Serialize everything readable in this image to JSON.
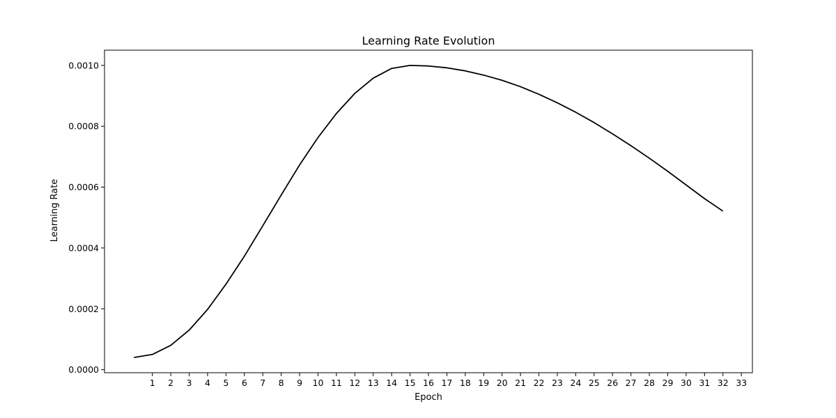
{
  "chart_data": {
    "type": "line",
    "title": "Learning Rate Evolution",
    "xlabel": "Epoch",
    "ylabel": "Learning Rate",
    "xlim": [
      -1.6,
      33.6
    ],
    "ylim": [
      -1e-05,
      0.00105
    ],
    "x_ticks": [
      1,
      2,
      3,
      4,
      5,
      6,
      7,
      8,
      9,
      10,
      11,
      12,
      13,
      14,
      15,
      16,
      17,
      18,
      19,
      20,
      21,
      22,
      23,
      24,
      25,
      26,
      27,
      28,
      29,
      30,
      31,
      32,
      33
    ],
    "y_ticks": [
      "0.0000",
      "0.0002",
      "0.0004",
      "0.0006",
      "0.0008",
      "0.0010"
    ],
    "y_tick_values": [
      0,
      0.0002,
      0.0004,
      0.0006,
      0.0008,
      0.001
    ],
    "grid": false,
    "line_color": "#000000",
    "series": [
      {
        "x": [
          0,
          1,
          2,
          3,
          4,
          5,
          6,
          7,
          8,
          9,
          10,
          11,
          12,
          13,
          14,
          15,
          16,
          17,
          18,
          19,
          20,
          21,
          22,
          23,
          24,
          25,
          26,
          27,
          28,
          29,
          30,
          31,
          32
        ],
        "values": [
          4e-05,
          5e-05,
          8e-05,
          0.00013,
          0.000198,
          0.000281,
          0.000373,
          0.000473,
          0.000574,
          0.000673,
          0.000763,
          0.000842,
          0.000908,
          0.000958,
          0.00099,
          0.001,
          0.000998,
          0.000992,
          0.000982,
          0.000968,
          0.000951,
          0.00093,
          0.000905,
          0.000877,
          0.000846,
          0.000812,
          0.000775,
          0.000736,
          0.000695,
          0.000652,
          0.000607,
          0.000562,
          0.000521
        ]
      }
    ]
  }
}
